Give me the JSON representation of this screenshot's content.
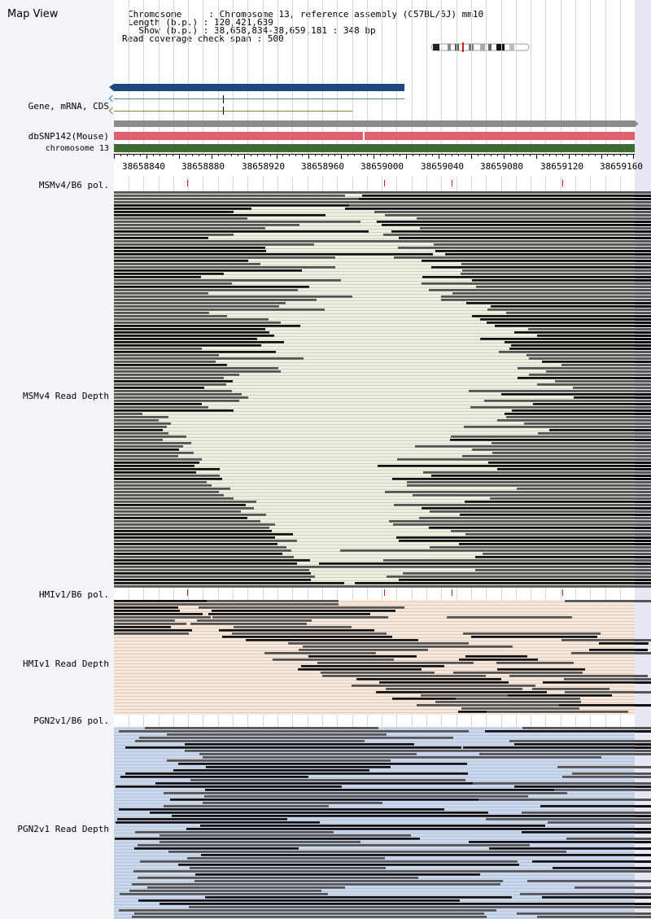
{
  "app": {
    "title": "Map View"
  },
  "header": {
    "chromosome_key": "Chromosome     :",
    "chromosome_val": "Chromosome 13, reference assembly (C57BL/6J) mm10",
    "length_key": "Length (b.p.) :",
    "length_val": "120,421,639",
    "show_key": "  Show (b.p.) :",
    "show_val": "38,658,834-38,659,181 : 348 bp",
    "span_key": "Read coverage check span :",
    "span_val": "500"
  },
  "tracks": {
    "gene": "Gene, mRNA, CDS",
    "dbsnp": "dbSNP142(Mouse)",
    "chrom": "chromosome 13",
    "msm_pol": "MSMv4/B6 pol.",
    "msm_depth": "MSMv4 Read Depth",
    "hmi_pol": "HMIv1/B6 pol.",
    "hmi_depth": "HMIv1 Read Depth",
    "pgn_pol": "PGN2v1/B6 pol.",
    "pgn_depth": "PGN2v1 Read Depth"
  },
  "ruler": {
    "ticks": [
      "38658840",
      "38658880",
      "38658920",
      "38658960",
      "38659000",
      "38659040",
      "38659080",
      "38659120",
      "38659160"
    ]
  },
  "colors": {
    "gene": "#1f497d",
    "mrna": "#3a8c9c",
    "cds": "#7a8a20",
    "dbsnp": "#e06070",
    "chrom": "#3d6b30",
    "msm_bg": "#edf0df",
    "hmi_bg": "#fbe7d8",
    "pgn_bg": "#c9d8ee",
    "left_bg": "#f4f4fb",
    "snp_mark": "#cc2222"
  },
  "icons": {
    "ideogram": "chromosome-ideogram-icon"
  }
}
